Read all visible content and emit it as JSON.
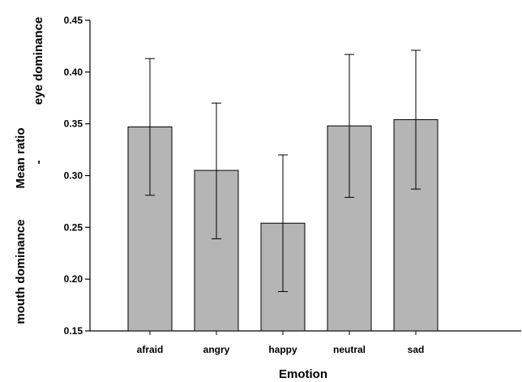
{
  "chart_data": {
    "type": "bar",
    "categories": [
      "afraid",
      "angry",
      "happy",
      "neutral",
      "sad"
    ],
    "values": [
      0.347,
      0.305,
      0.254,
      0.348,
      0.354
    ],
    "error_upper": [
      0.413,
      0.37,
      0.32,
      0.417,
      0.421
    ],
    "error_lower": [
      0.281,
      0.239,
      0.188,
      0.279,
      0.287
    ],
    "xlabel": "Emotion",
    "ylabel_lines": [
      "mouth dominance",
      "-",
      "eye dominance"
    ],
    "ylabel_center": "Mean ratio",
    "ylim": [
      0.15,
      0.45
    ],
    "yticks": [
      "0.15",
      "0.20",
      "0.25",
      "0.30",
      "0.35",
      "0.40",
      "0.45"
    ],
    "bar_color": "#b5b5b5",
    "grid": false
  }
}
